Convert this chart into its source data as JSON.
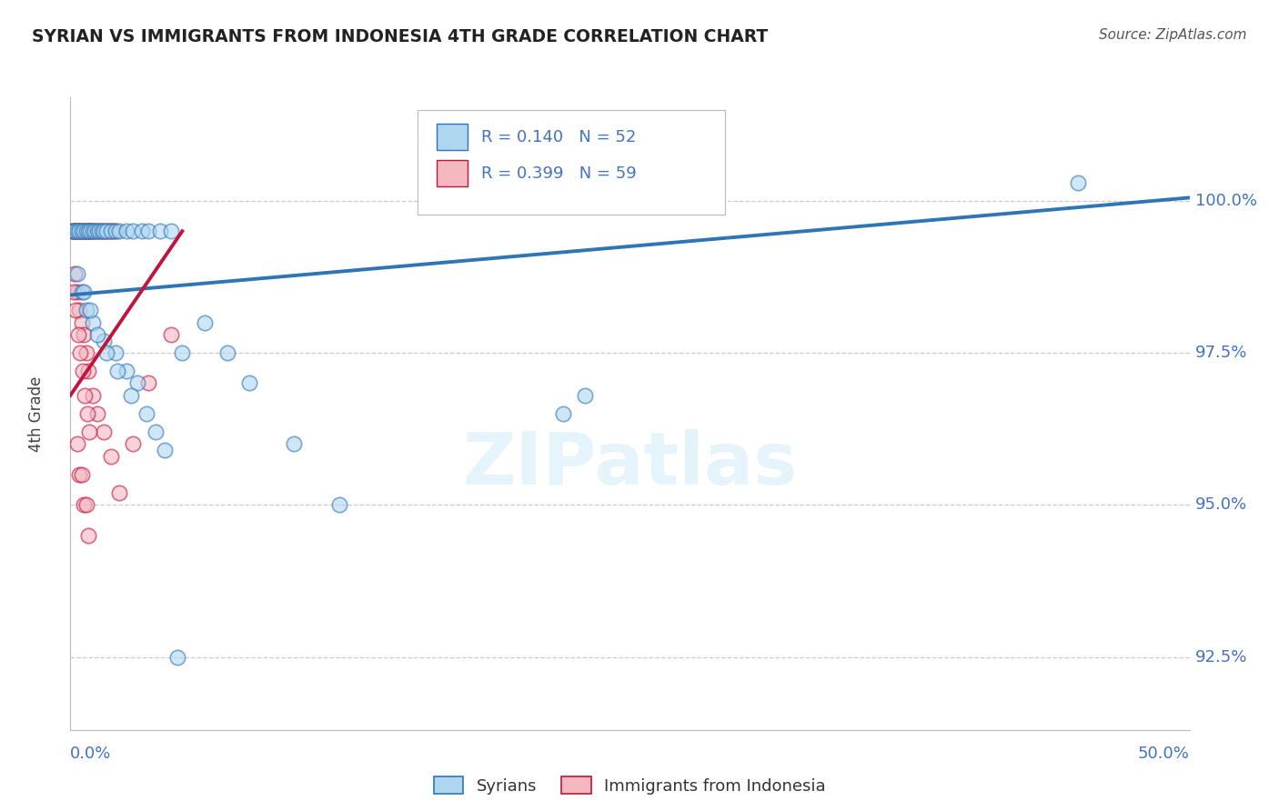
{
  "title": "SYRIAN VS IMMIGRANTS FROM INDONESIA 4TH GRADE CORRELATION CHART",
  "source": "Source: ZipAtlas.com",
  "ylabel": "4th Grade",
  "y_ticks": [
    92.5,
    95.0,
    97.5,
    100.0
  ],
  "y_tick_labels": [
    "92.5%",
    "95.0%",
    "97.5%",
    "100.0%"
  ],
  "x_min": 0.0,
  "x_max": 50.0,
  "y_min": 91.3,
  "y_max": 101.7,
  "blue_color": "#aed6f1",
  "pink_color": "#f5b7c0",
  "trendline_blue_color": "#2e75b6",
  "trendline_pink_color": "#c0143c",
  "blue_label": "Syrians",
  "pink_label": "Immigrants from Indonesia",
  "blue_R_text": "R = 0.140",
  "blue_N_text": "N = 52",
  "pink_R_text": "R = 0.399",
  "pink_N_text": "N = 59",
  "blue_trend_x0": 0.0,
  "blue_trend_y0": 98.45,
  "blue_trend_x1": 50.0,
  "blue_trend_y1": 100.05,
  "pink_trend_x0": 0.0,
  "pink_trend_y0": 96.8,
  "pink_trend_x1": 5.0,
  "pink_trend_y1": 99.5,
  "blue_points_x": [
    0.1,
    0.2,
    0.3,
    0.4,
    0.5,
    0.6,
    0.7,
    0.8,
    0.9,
    1.0,
    1.1,
    1.2,
    1.3,
    1.4,
    1.5,
    1.6,
    1.8,
    2.0,
    2.2,
    2.5,
    2.8,
    3.2,
    3.5,
    4.0,
    4.5,
    0.5,
    0.7,
    1.0,
    1.5,
    2.0,
    2.5,
    3.0,
    0.3,
    0.6,
    0.9,
    1.2,
    1.6,
    2.1,
    2.7,
    3.4,
    3.8,
    4.2,
    5.0,
    6.0,
    7.0,
    8.0,
    10.0,
    12.0,
    23.0,
    45.0,
    22.0,
    4.8
  ],
  "blue_points_y": [
    99.5,
    99.5,
    99.5,
    99.5,
    99.5,
    99.5,
    99.5,
    99.5,
    99.5,
    99.5,
    99.5,
    99.5,
    99.5,
    99.5,
    99.5,
    99.5,
    99.5,
    99.5,
    99.5,
    99.5,
    99.5,
    99.5,
    99.5,
    99.5,
    99.5,
    98.5,
    98.2,
    98.0,
    97.7,
    97.5,
    97.2,
    97.0,
    98.8,
    98.5,
    98.2,
    97.8,
    97.5,
    97.2,
    96.8,
    96.5,
    96.2,
    95.9,
    97.5,
    98.0,
    97.5,
    97.0,
    96.0,
    95.0,
    96.8,
    100.3,
    96.5,
    92.5
  ],
  "pink_points_x": [
    0.05,
    0.1,
    0.15,
    0.2,
    0.25,
    0.3,
    0.35,
    0.4,
    0.45,
    0.5,
    0.55,
    0.6,
    0.65,
    0.7,
    0.75,
    0.8,
    0.85,
    0.9,
    0.95,
    1.0,
    1.1,
    1.2,
    1.3,
    1.4,
    1.5,
    1.6,
    1.7,
    1.8,
    1.9,
    2.0,
    0.2,
    0.3,
    0.4,
    0.5,
    0.6,
    0.7,
    0.8,
    1.0,
    1.2,
    1.5,
    1.8,
    2.2,
    2.8,
    3.5,
    0.15,
    0.25,
    0.35,
    0.45,
    0.55,
    0.65,
    0.75,
    0.85,
    0.4,
    0.6,
    0.8,
    0.3,
    0.5,
    0.7,
    4.5
  ],
  "pink_points_y": [
    99.5,
    99.5,
    99.5,
    99.5,
    99.5,
    99.5,
    99.5,
    99.5,
    99.5,
    99.5,
    99.5,
    99.5,
    99.5,
    99.5,
    99.5,
    99.5,
    99.5,
    99.5,
    99.5,
    99.5,
    99.5,
    99.5,
    99.5,
    99.5,
    99.5,
    99.5,
    99.5,
    99.5,
    99.5,
    99.5,
    98.8,
    98.5,
    98.2,
    98.0,
    97.8,
    97.5,
    97.2,
    96.8,
    96.5,
    96.2,
    95.8,
    95.2,
    96.0,
    97.0,
    98.5,
    98.2,
    97.8,
    97.5,
    97.2,
    96.8,
    96.5,
    96.2,
    95.5,
    95.0,
    94.5,
    96.0,
    95.5,
    95.0,
    97.8
  ]
}
